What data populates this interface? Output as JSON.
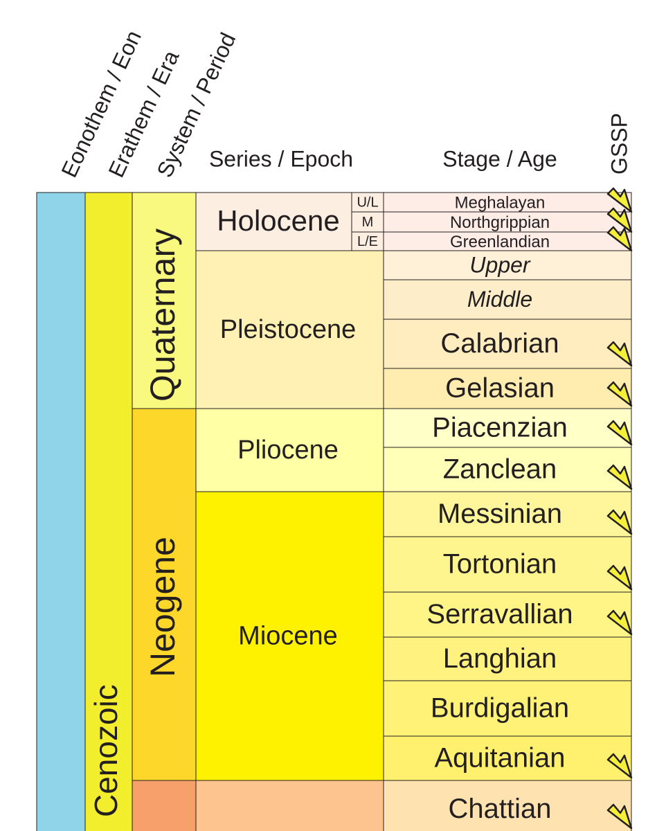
{
  "headers": {
    "eon": "Eonothem / Eon",
    "era": "Erathem / Era",
    "period": "System / Period",
    "series": "Series / Epoch",
    "stage": "Stage / Age",
    "gssp": "GSSP"
  },
  "eon": {
    "label": ""
  },
  "era": {
    "label": "Cenozoic"
  },
  "periods": [
    {
      "label": "Quaternary"
    },
    {
      "label": "Neogene"
    },
    {
      "label": ""
    }
  ],
  "series": [
    {
      "label": "Holocene"
    },
    {
      "label": "Pleistocene"
    },
    {
      "label": "Pliocene"
    },
    {
      "label": "Miocene"
    },
    {
      "label": ""
    }
  ],
  "holocene_subseries": [
    "U/L",
    "M",
    "L/E"
  ],
  "stages": [
    {
      "label": "Meghalayan",
      "gssp": true
    },
    {
      "label": "Northgrippian",
      "gssp": true
    },
    {
      "label": "Greenlandian",
      "gssp": true
    },
    {
      "label": "Upper",
      "gssp": false
    },
    {
      "label": "Middle",
      "gssp": false
    },
    {
      "label": "Calabrian",
      "gssp": true
    },
    {
      "label": "Gelasian",
      "gssp": true
    },
    {
      "label": "Piacenzian",
      "gssp": true
    },
    {
      "label": "Zanclean",
      "gssp": true
    },
    {
      "label": "Messinian",
      "gssp": true
    },
    {
      "label": "Tortonian",
      "gssp": true
    },
    {
      "label": "Serravallian",
      "gssp": true
    },
    {
      "label": "Langhian",
      "gssp": false
    },
    {
      "label": "Burdigalian",
      "gssp": false
    },
    {
      "label": "Aquitanian",
      "gssp": true
    },
    {
      "label": "Chattian",
      "gssp": true
    }
  ]
}
